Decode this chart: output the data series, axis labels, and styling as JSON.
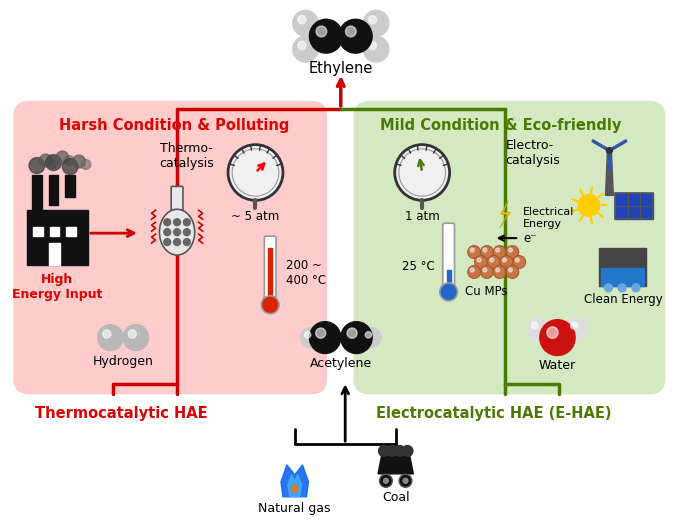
{
  "left_box_color": "#ffcccc",
  "right_box_color": "#d4e8c2",
  "left_label": "Harsh Condition & Polluting",
  "right_label": "Mild Condition & Eco-friendly",
  "left_label_color": "#e00000",
  "right_label_color": "#4a7a00",
  "left_footer": "Thermocatalytic HAE",
  "right_footer": "Electrocatalytic HAE (E-HAE)",
  "left_footer_color": "#e00000",
  "right_footer_color": "#4a7a00",
  "thermo_text": "Thermo-\ncatalysis",
  "electro_text": "Electro-\ncatalysis",
  "pressure_left": "~ 5 atm",
  "pressure_right": "1 atm",
  "temp_left": "200 ~\n400 °C",
  "temp_right": "25 °C",
  "high_energy": "High\nEnergy Input",
  "high_energy_color": "#e00000",
  "cu_mps": "Cu MPs",
  "clean_energy": "Clean Energy",
  "electrical_energy": "Electrical\nEnergy",
  "electron": "e⁻",
  "hydrogen_label": "Hydrogen",
  "acetylene_label": "Acetylene",
  "water_label": "Water",
  "ethylene_label": "Ethylene",
  "natural_gas_label": "Natural gas",
  "coal_label": "Coal",
  "arrow_red": "#cc0000",
  "arrow_green": "#4a7a00",
  "arrow_black": "#111111"
}
